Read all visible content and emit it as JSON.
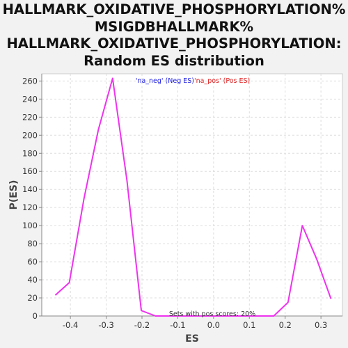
{
  "chart_data": {
    "type": "line",
    "title_lines": [
      "HALLMARK_OXIDATIVE_PHOSPHORYLATION%",
      "MSIGDBHALLMARK%",
      "HALLMARK_OXIDATIVE_PHOSPHORYLATION:",
      "Random ES distribution"
    ],
    "xlabel": "ES",
    "ylabel": "P(ES)",
    "xlim": [
      -0.48,
      0.36
    ],
    "ylim": [
      0,
      268
    ],
    "x_ticks": [
      -0.4,
      -0.3,
      -0.2,
      -0.1,
      0.0,
      0.1,
      0.2,
      0.3
    ],
    "x_tick_labels": [
      "-0.4",
      "-0.3",
      "-0.2",
      "-0.1",
      "0.0",
      "0.1",
      "0.2",
      "0.3"
    ],
    "y_ticks": [
      0,
      20,
      40,
      60,
      80,
      100,
      120,
      140,
      160,
      180,
      200,
      220,
      240,
      260
    ],
    "y_tick_labels": [
      "0",
      "20",
      "40",
      "60",
      "80",
      "100",
      "120",
      "140",
      "160",
      "180",
      "200",
      "220",
      "240",
      "260"
    ],
    "grid": true,
    "legend": {
      "placement": "top-center",
      "entries": [
        {
          "label": "'na_neg' (Neg ES)",
          "color": "#2020e0"
        },
        {
          "label": "'na_pos' (Pos ES)",
          "color": "#e02020"
        }
      ]
    },
    "annotation": "Sets with pos scores: 20%",
    "series": [
      {
        "color": "#ee33ee",
        "points": [
          [
            -0.442,
            23
          ],
          [
            -0.403,
            37
          ],
          [
            -0.362,
            130
          ],
          [
            -0.322,
            206
          ],
          [
            -0.282,
            263
          ],
          [
            -0.242,
            150
          ],
          [
            -0.202,
            6
          ],
          [
            -0.162,
            0
          ],
          [
            -0.122,
            0
          ],
          [
            -0.082,
            0
          ],
          [
            -0.042,
            0
          ],
          [
            -0.002,
            0
          ],
          [
            0.038,
            0
          ],
          [
            0.078,
            0
          ],
          [
            0.118,
            0
          ],
          [
            0.158,
            0
          ],
          [
            0.168,
            0
          ],
          [
            0.208,
            15
          ],
          [
            0.248,
            100
          ],
          [
            0.288,
            63
          ],
          [
            0.328,
            19
          ]
        ]
      }
    ]
  }
}
